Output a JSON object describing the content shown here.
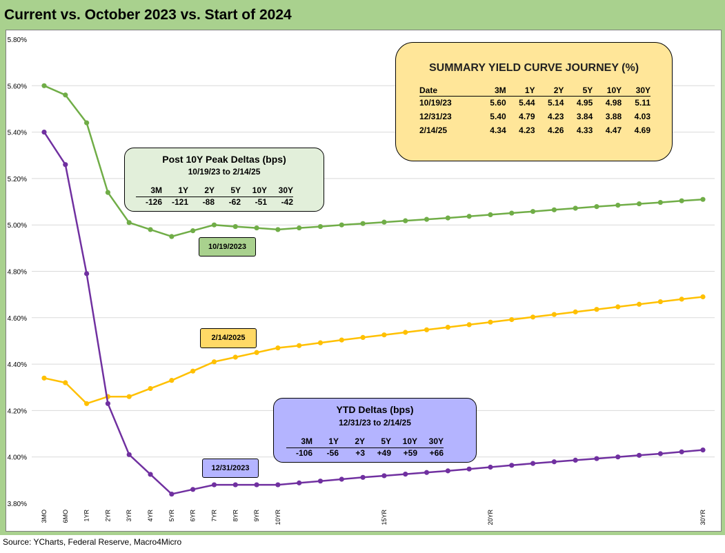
{
  "title": "Current vs. October 2023 vs. Start of 2024",
  "source": "Source: YCharts, Federal Reserve, Macro4Micro",
  "summary": {
    "title": "SUMMARY YIELD CURVE JOURNEY (%)",
    "headers": [
      "Date",
      "3M",
      "1Y",
      "2Y",
      "5Y",
      "10Y",
      "30Y"
    ],
    "rows": [
      [
        "10/19/23",
        "5.60",
        "5.44",
        "5.14",
        "4.95",
        "4.98",
        "5.11"
      ],
      [
        "12/31/23",
        "5.40",
        "4.79",
        "4.23",
        "3.84",
        "3.88",
        "4.03"
      ],
      [
        "2/14/25",
        "4.34",
        "4.23",
        "4.26",
        "4.33",
        "4.47",
        "4.69"
      ]
    ]
  },
  "peak_deltas": {
    "title": "Post 10Y Peak Deltas (bps)",
    "subtitle": "10/19/23 to 2/14/25",
    "headers": [
      "3M",
      "1Y",
      "2Y",
      "5Y",
      "10Y",
      "30Y"
    ],
    "values": [
      "-126",
      "-121",
      "-88",
      "-62",
      "-51",
      "-42"
    ]
  },
  "ytd_deltas": {
    "title": "YTD Deltas (bps)",
    "subtitle": "12/31/23 to 2/14/25",
    "headers": [
      "3M",
      "1Y",
      "2Y",
      "5Y",
      "10Y",
      "30Y"
    ],
    "values": [
      "-106",
      "-56",
      "+3",
      "+49",
      "+59",
      "+66"
    ]
  },
  "tags": {
    "oct": "10/19/2023",
    "feb": "2/14/2025",
    "dec": "12/31/2023"
  },
  "colors": {
    "oct_2023": "#70ad47",
    "feb_2025": "#ffc000",
    "dec_2023": "#7030a0",
    "frame": "#a9d18e",
    "summary_fill": "#ffe699",
    "peak_fill": "#e2efda",
    "ytd_fill": "#b4b4ff"
  },
  "chart_data": {
    "type": "line",
    "x_tick_labels": [
      "3MO",
      "6MO",
      "1YR",
      "2YR",
      "3YR",
      "4YR",
      "5YR",
      "6YR",
      "7YR",
      "8YR",
      "9YR",
      "10YR",
      "15YR",
      "20YR",
      "30YR"
    ],
    "x_tick_positions": [
      0,
      1,
      2,
      3,
      4,
      5,
      6,
      7,
      8,
      9,
      10,
      11,
      16,
      21,
      31
    ],
    "ylim": [
      3.8,
      5.8
    ],
    "y_ticks": [
      "3.80%",
      "4.00%",
      "4.20%",
      "4.40%",
      "4.60%",
      "4.80%",
      "5.00%",
      "5.20%",
      "5.40%",
      "5.60%",
      "5.80%"
    ],
    "grid": "horizontal",
    "series": [
      {
        "name": "10/19/2023",
        "values": [
          5.6,
          5.56,
          5.44,
          5.14,
          5.01,
          4.98,
          4.95,
          4.975,
          5.0,
          4.993,
          4.987,
          4.98,
          4.987,
          4.993,
          5.0,
          5.006,
          5.012,
          5.018,
          5.024,
          5.03,
          5.037,
          5.044,
          5.051,
          5.058,
          5.065,
          5.072,
          5.079,
          5.085,
          5.091,
          5.097,
          5.104,
          5.11
        ]
      },
      {
        "name": "2/14/2025",
        "values": [
          4.34,
          4.32,
          4.23,
          4.26,
          4.26,
          4.295,
          4.33,
          4.37,
          4.41,
          4.43,
          4.45,
          4.47,
          4.48,
          4.492,
          4.504,
          4.515,
          4.526,
          4.537,
          4.548,
          4.559,
          4.57,
          4.581,
          4.592,
          4.603,
          4.614,
          4.625,
          4.636,
          4.647,
          4.658,
          4.669,
          4.68,
          4.69
        ]
      },
      {
        "name": "12/31/2023",
        "values": [
          5.4,
          5.26,
          4.79,
          4.23,
          4.01,
          3.925,
          3.84,
          3.86,
          3.88,
          3.88,
          3.88,
          3.88,
          3.888,
          3.896,
          3.904,
          3.912,
          3.919,
          3.926,
          3.933,
          3.94,
          3.948,
          3.956,
          3.964,
          3.972,
          3.979,
          3.986,
          3.993,
          4.0,
          4.007,
          4.014,
          4.022,
          4.03
        ]
      }
    ]
  }
}
